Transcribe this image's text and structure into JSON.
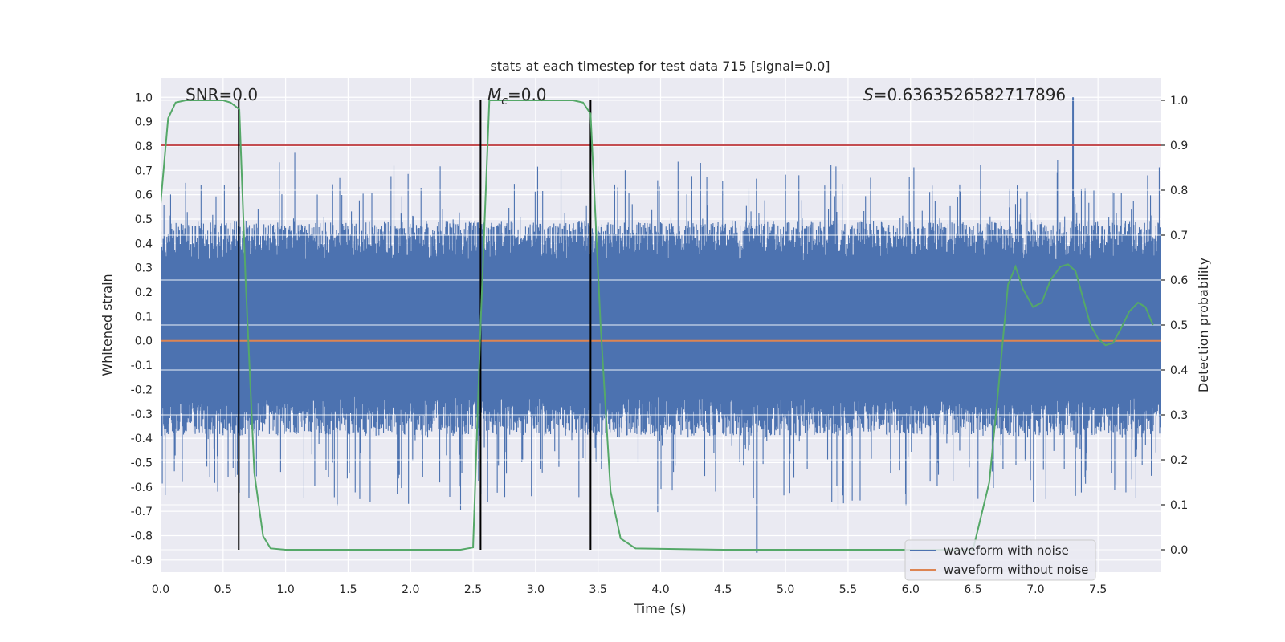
{
  "chart_data": {
    "type": "line",
    "title": "stats at each timestep for test data 715 [signal=0.0]",
    "xlabel": "Time (s)",
    "ylabel": "Whitened strain",
    "y2label": "Detection probability",
    "xlim": [
      0.0,
      8.0
    ],
    "ylim": [
      -0.95,
      1.08
    ],
    "y2lim": [
      -0.05,
      1.05
    ],
    "xticks": [
      0.0,
      0.5,
      1.0,
      1.5,
      2.0,
      2.5,
      3.0,
      3.5,
      4.0,
      4.5,
      5.0,
      5.5,
      6.0,
      6.5,
      7.0,
      7.5
    ],
    "xtick_labels": [
      "0.0",
      "0.5",
      "1.0",
      "1.5",
      "2.0",
      "2.5",
      "3.0",
      "3.5",
      "4.0",
      "4.5",
      "5.0",
      "5.5",
      "6.0",
      "6.5",
      "7.0",
      "7.5"
    ],
    "yticks": [
      1.0,
      0.9,
      0.8,
      0.7,
      0.6,
      0.5,
      0.4,
      0.3,
      0.2,
      0.1,
      0.0,
      -0.1,
      -0.2,
      -0.3,
      -0.4,
      -0.5,
      -0.6,
      -0.7,
      -0.8,
      -0.9
    ],
    "ytick_labels": [
      "1.0",
      "0.9",
      "0.8",
      "0.7",
      "0.6",
      "0.5",
      "0.4",
      "0.3",
      "0.2",
      "0.1",
      "0.0",
      "-0.1",
      "-0.2",
      "-0.3",
      "-0.4",
      "-0.5",
      "-0.6",
      "-0.7",
      "-0.8",
      "-0.9"
    ],
    "y2ticks": [
      1.0,
      0.9,
      0.8,
      0.7,
      0.6,
      0.5,
      0.4,
      0.3,
      0.2,
      0.1,
      0.0
    ],
    "y2tick_labels": [
      "1.0",
      "0.9",
      "0.8",
      "0.7",
      "0.6",
      "0.5",
      "0.4",
      "0.3",
      "0.2",
      "0.1",
      "0.0"
    ],
    "annotations": {
      "snr": "SNR=0.0",
      "mc_symbol": "M",
      "mc_sub": "c",
      "mc_value": "=0.0",
      "s_symbol": "S",
      "s_value": "=0.6363526582717896"
    },
    "threshold_line": {
      "y2": 0.9,
      "color": "#c44e52"
    },
    "vertical_markers": [
      0.625,
      2.56,
      3.44
    ],
    "series": [
      {
        "name": "waveform with noise",
        "color": "#4c72b0",
        "kind": "noise",
        "typical_band": [
          -0.33,
          0.45
        ],
        "extremes": [
          -0.87,
          1.0
        ]
      },
      {
        "name": "waveform without noise",
        "color": "#dd8452",
        "kind": "constant",
        "value": 0.0
      },
      {
        "name": "detection probability",
        "color": "#55a868",
        "axis": "right",
        "x": [
          0.0,
          0.06,
          0.12,
          0.2,
          0.3,
          0.4,
          0.5,
          0.56,
          0.63,
          0.68,
          0.75,
          0.82,
          0.88,
          1.0,
          1.5,
          2.0,
          2.4,
          2.5,
          2.56,
          2.63,
          2.7,
          3.0,
          3.3,
          3.38,
          3.44,
          3.52,
          3.6,
          3.68,
          3.8,
          4.5,
          5.0,
          5.5,
          6.0,
          6.5,
          6.63,
          6.7,
          6.78,
          6.84,
          6.9,
          6.98,
          7.05,
          7.12,
          7.2,
          7.26,
          7.32,
          7.38,
          7.44,
          7.5,
          7.56,
          7.62,
          7.68,
          7.75,
          7.82,
          7.88,
          7.94
        ],
        "y": [
          0.77,
          0.96,
          0.995,
          1.0,
          1.0,
          1.0,
          1.0,
          0.995,
          0.98,
          0.6,
          0.17,
          0.03,
          0.003,
          0.0,
          0.0,
          0.0,
          0.0,
          0.005,
          0.5,
          1.0,
          1.0,
          1.0,
          1.0,
          0.995,
          0.97,
          0.5,
          0.13,
          0.025,
          0.003,
          0.0,
          0.0,
          0.0,
          0.0,
          0.0,
          0.15,
          0.35,
          0.59,
          0.63,
          0.58,
          0.54,
          0.55,
          0.6,
          0.63,
          0.635,
          0.62,
          0.56,
          0.5,
          0.47,
          0.455,
          0.46,
          0.49,
          0.53,
          0.55,
          0.54,
          0.5
        ]
      }
    ],
    "legend": {
      "position": "lower-right",
      "entries": [
        "waveform with noise",
        "waveform without noise"
      ]
    },
    "grid": true,
    "background": "#eaeaf2"
  }
}
